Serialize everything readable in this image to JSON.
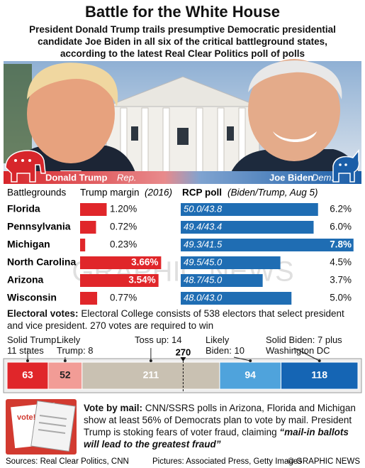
{
  "header": {
    "title": "Battle for the White House",
    "subtitle": "President Donald Trump trails presumptive Democratic presidential candidate Joe Biden in all six of the critical battleground states, according to the latest Real Clear Politics poll of polls"
  },
  "candidates": [
    {
      "name": "Donald Trump",
      "party": "Rep.",
      "color": "#d7262b"
    },
    {
      "name": "Joe Biden",
      "party": "Dem.",
      "color": "#1a5ea8"
    }
  ],
  "chart_data": [
    {
      "type": "bar",
      "row_header": "Battlegrounds",
      "title": "Trump margin",
      "title_note": "(2016)",
      "categories": [
        "Florida",
        "Pennsylvania",
        "Michigan",
        "North Carolina",
        "Arizona",
        "Wisconsin"
      ],
      "values": [
        1.2,
        0.72,
        0.23,
        3.66,
        3.54,
        0.77
      ],
      "value_labels": [
        "1.20%",
        "0.72%",
        "0.23%",
        "3.66%",
        "3.54%",
        "0.77%"
      ],
      "color": "#e0262a",
      "xlim": [
        0,
        8
      ]
    },
    {
      "type": "bar",
      "title": "RCP poll",
      "title_note": "(Biden/Trump, Aug 5)",
      "poll_labels": [
        "50.0/43.8",
        "49.4/43.4",
        "49.3/41.5",
        "49.5/45.0",
        "48.7/45.0",
        "48.0/43.0"
      ],
      "values": [
        6.2,
        6.0,
        7.8,
        4.5,
        3.7,
        5.0
      ],
      "value_labels": [
        "6.2%",
        "6.0%",
        "7.8%",
        "4.5%",
        "3.7%",
        "5.0%"
      ],
      "color": "#1f6db3",
      "xlim": [
        0,
        8
      ]
    },
    {
      "type": "stacked-bar",
      "title": "Electoral votes:",
      "description": "Electoral College consists of 538 electors that select president and vice president. 270 votes are required to win",
      "categories": [
        "Solid Trump: 11 states",
        "Likely Trump: 8",
        "Toss up: 14",
        "Likely Biden: 10",
        "Solid Biden: 7 plus Washington DC"
      ],
      "values": [
        63,
        52,
        211,
        94,
        118
      ],
      "colors": [
        "#e0262a",
        "#f29c96",
        "#c9c1b2",
        "#4fa3dc",
        "#1565b4"
      ],
      "majority": 270,
      "xlim": [
        0,
        538
      ]
    }
  ],
  "vote_by_mail": {
    "title": "Vote by mail:",
    "text": "CNN/SSRS polls in Arizona, Florida and Michigan show at least 56% of Democrats plan to vote by mail. President Trump is stoking fears of voter fraud, claiming",
    "quote": "“mail-in ballots will lead to the greatest fraud”",
    "badge": "vote!"
  },
  "footer": {
    "sources": "Sources: Real Clear Politics, CNN",
    "pictures": "Pictures: Associated Press, Getty Images",
    "credit": "© GRAPHIC NEWS"
  },
  "watermark": "GRAPHIC NEWS"
}
